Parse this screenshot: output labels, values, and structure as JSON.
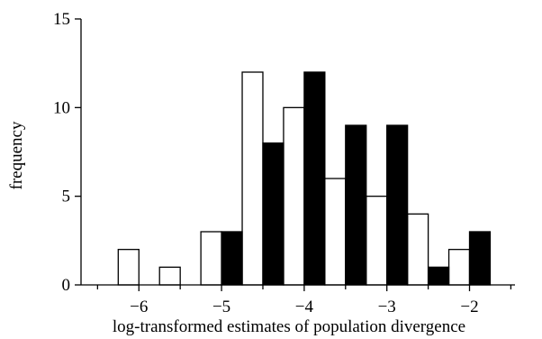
{
  "chart_data": {
    "type": "bar",
    "title": "",
    "xlabel": "log-transformed estimates of population divergence",
    "ylabel": "frequency",
    "xlim": [
      -6.7,
      -1.45
    ],
    "ylim": [
      0,
      15
    ],
    "bin_width": 0.25,
    "x_ticks": [
      -6,
      -5,
      -4,
      -3,
      -2
    ],
    "x_tick_labels": [
      "−6",
      "−5",
      "−4",
      "−3",
      "−2"
    ],
    "y_ticks": [
      0,
      5,
      10,
      15
    ],
    "y_tick_labels": [
      "0",
      "5",
      "10",
      "15"
    ],
    "grid": false,
    "legend": "none",
    "series": [
      {
        "fill": "#ffffff",
        "bins": [
          {
            "x0": -6.25,
            "value": 2
          },
          {
            "x0": -5.75,
            "value": 1
          },
          {
            "x0": -5.25,
            "value": 3
          },
          {
            "x0": -4.75,
            "value": 12
          },
          {
            "x0": -4.25,
            "value": 10
          },
          {
            "x0": -3.75,
            "value": 6
          },
          {
            "x0": -3.25,
            "value": 5
          },
          {
            "x0": -2.75,
            "value": 4
          },
          {
            "x0": -2.25,
            "value": 2
          }
        ]
      },
      {
        "fill": "#000000",
        "bins": [
          {
            "x0": -5.0,
            "value": 3
          },
          {
            "x0": -4.5,
            "value": 8
          },
          {
            "x0": -4.0,
            "value": 12
          },
          {
            "x0": -3.5,
            "value": 9
          },
          {
            "x0": -3.0,
            "value": 9
          },
          {
            "x0": -2.5,
            "value": 1
          },
          {
            "x0": -2.0,
            "value": 3
          }
        ]
      }
    ]
  }
}
